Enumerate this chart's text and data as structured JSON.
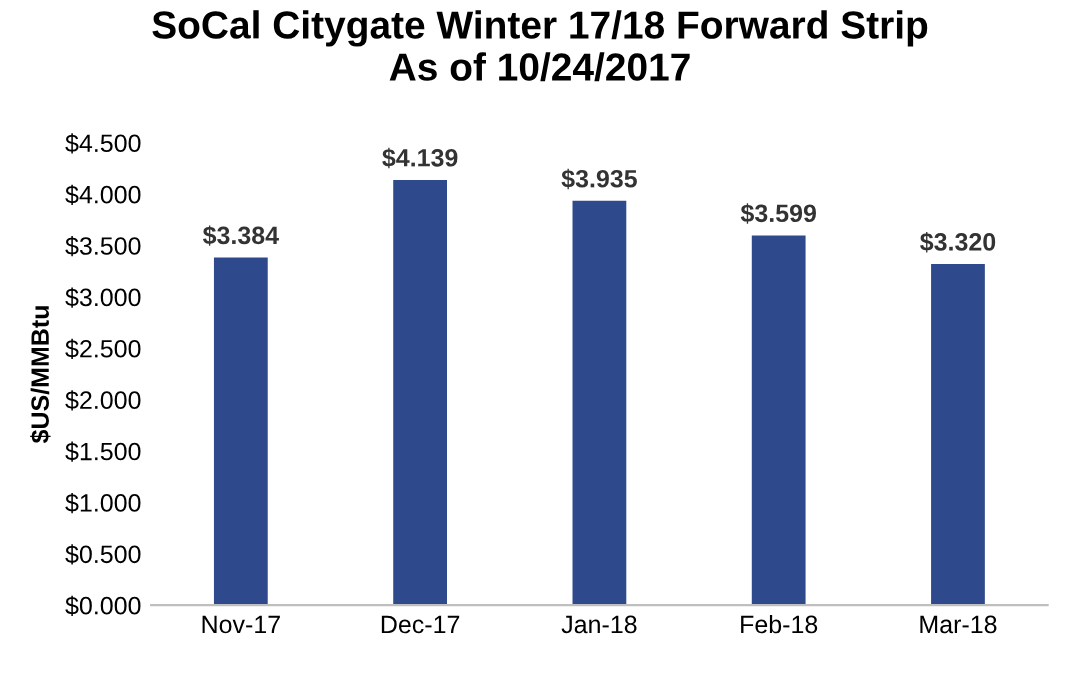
{
  "chart_data": {
    "type": "bar",
    "title": "SoCal Citygate Winter 17/18 Forward Strip\nAs of 10/24/2017",
    "ylabel": "$US/MMBtu",
    "categories": [
      "Nov-17",
      "Dec-17",
      "Jan-18",
      "Feb-18",
      "Mar-18"
    ],
    "values": [
      3.384,
      4.139,
      3.935,
      3.599,
      3.32
    ],
    "value_labels": [
      "$3.384",
      "$4.139",
      "$3.935",
      "$3.599",
      "$3.320"
    ],
    "color": "#2e4a8c",
    "ylim": [
      0,
      4.5
    ],
    "yticks": [
      {
        "value": 0,
        "label": "$0.000"
      },
      {
        "value": 0.5,
        "label": "$0.500"
      },
      {
        "value": 1,
        "label": "$1.000"
      },
      {
        "value": 1.5,
        "label": "$1.500"
      },
      {
        "value": 2,
        "label": "$2.000"
      },
      {
        "value": 2.5,
        "label": "$2.500"
      },
      {
        "value": 3,
        "label": "$3.000"
      },
      {
        "value": 3.5,
        "label": "$3.500"
      },
      {
        "value": 4,
        "label": "$4.000"
      },
      {
        "value": 4.5,
        "label": "$4.500"
      }
    ],
    "grid": false
  }
}
